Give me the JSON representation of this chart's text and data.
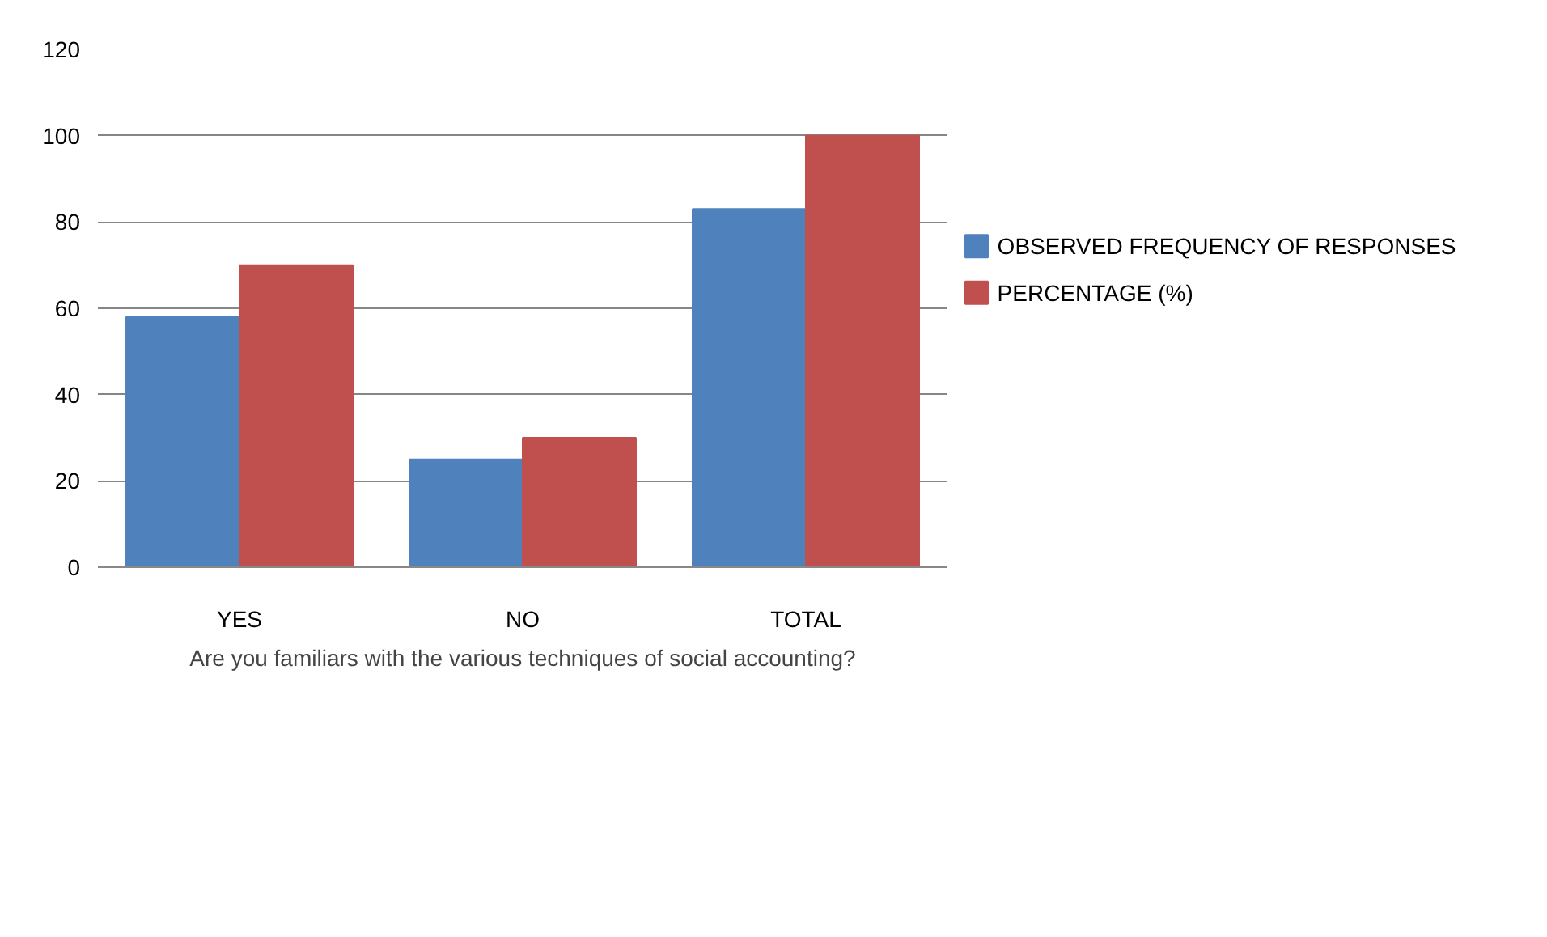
{
  "chart_data": {
    "type": "bar",
    "categories": [
      "YES",
      "NO",
      "TOTAL"
    ],
    "xlabel": "Are you familiars with the various techniques of social accounting?",
    "series": [
      {
        "name": "OBSERVED FREQUENCY OF RESPONSES",
        "color": "#4f81bd",
        "values": [
          58,
          25,
          83
        ]
      },
      {
        "name": "PERCENTAGE (%)",
        "color": "#c0504d",
        "values": [
          70,
          30,
          100
        ]
      }
    ],
    "ylim": [
      0,
      120
    ],
    "yticks": [
      0,
      20,
      40,
      60,
      80,
      100,
      120
    ],
    "grid": "y",
    "legend": "right"
  }
}
